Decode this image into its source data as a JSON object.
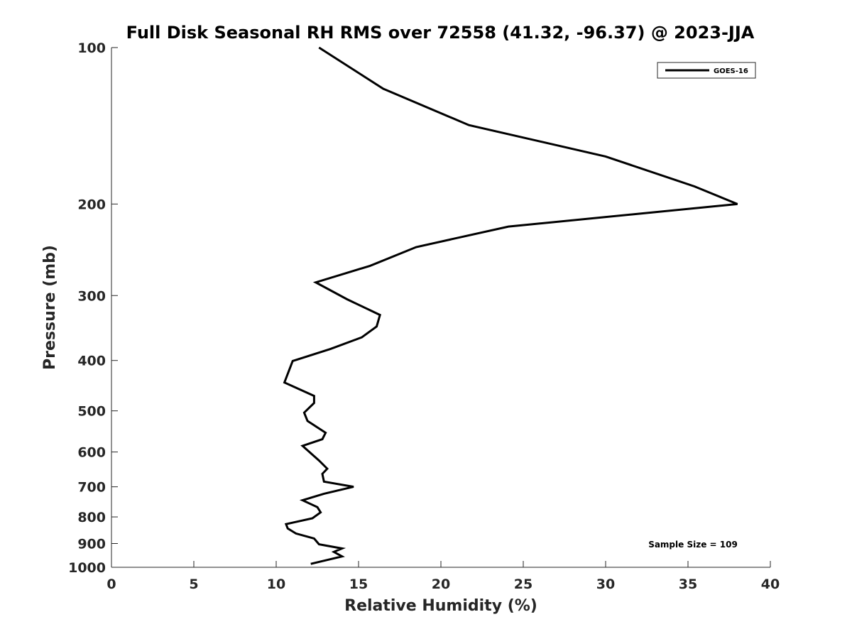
{
  "chart_data": {
    "type": "line",
    "title": "Full Disk Seasonal RH RMS over 72558 (41.32, -96.37) @ 2023-JJA",
    "xlabel": "Relative Humidity (%)",
    "ylabel": "Pressure (mb)",
    "xlim": [
      0,
      40
    ],
    "ylim": [
      100,
      1000
    ],
    "y_scale": "log",
    "y_reversed": true,
    "grid": false,
    "legend_position": "top-right",
    "x_ticks": [
      0,
      5,
      10,
      15,
      20,
      25,
      30,
      35,
      40
    ],
    "y_ticks": [
      100,
      200,
      300,
      400,
      500,
      600,
      700,
      800,
      900,
      1000
    ],
    "series": [
      {
        "name": "GOES-16",
        "color": "#000000",
        "points": [
          [
            12.6,
            100
          ],
          [
            16.5,
            120
          ],
          [
            21.7,
            141
          ],
          [
            30.0,
            162
          ],
          [
            35.4,
            185
          ],
          [
            38.0,
            200
          ],
          [
            24.1,
            221
          ],
          [
            18.5,
            242
          ],
          [
            15.7,
            263
          ],
          [
            12.4,
            283
          ],
          [
            14.3,
            305
          ],
          [
            16.3,
            327
          ],
          [
            16.1,
            344
          ],
          [
            15.2,
            361
          ],
          [
            13.3,
            380
          ],
          [
            11.0,
            401
          ],
          [
            10.5,
            441
          ],
          [
            12.3,
            468
          ],
          [
            12.3,
            483
          ],
          [
            11.7,
            504
          ],
          [
            11.9,
            523
          ],
          [
            13.0,
            551
          ],
          [
            12.8,
            567
          ],
          [
            11.6,
            584
          ],
          [
            12.6,
            623
          ],
          [
            13.1,
            646
          ],
          [
            12.8,
            661
          ],
          [
            12.9,
            684
          ],
          [
            14.7,
            700
          ],
          [
            12.9,
            722
          ],
          [
            11.6,
            743
          ],
          [
            12.5,
            766
          ],
          [
            12.7,
            784
          ],
          [
            12.2,
            805
          ],
          [
            10.6,
            826
          ],
          [
            10.7,
            842
          ],
          [
            11.2,
            861
          ],
          [
            12.3,
            880
          ],
          [
            12.6,
            903
          ],
          [
            14.0,
            920
          ],
          [
            13.5,
            934
          ],
          [
            14.0,
            953
          ],
          [
            12.1,
            985
          ]
        ]
      }
    ],
    "annotations": [
      "Sample Size = 109"
    ]
  }
}
